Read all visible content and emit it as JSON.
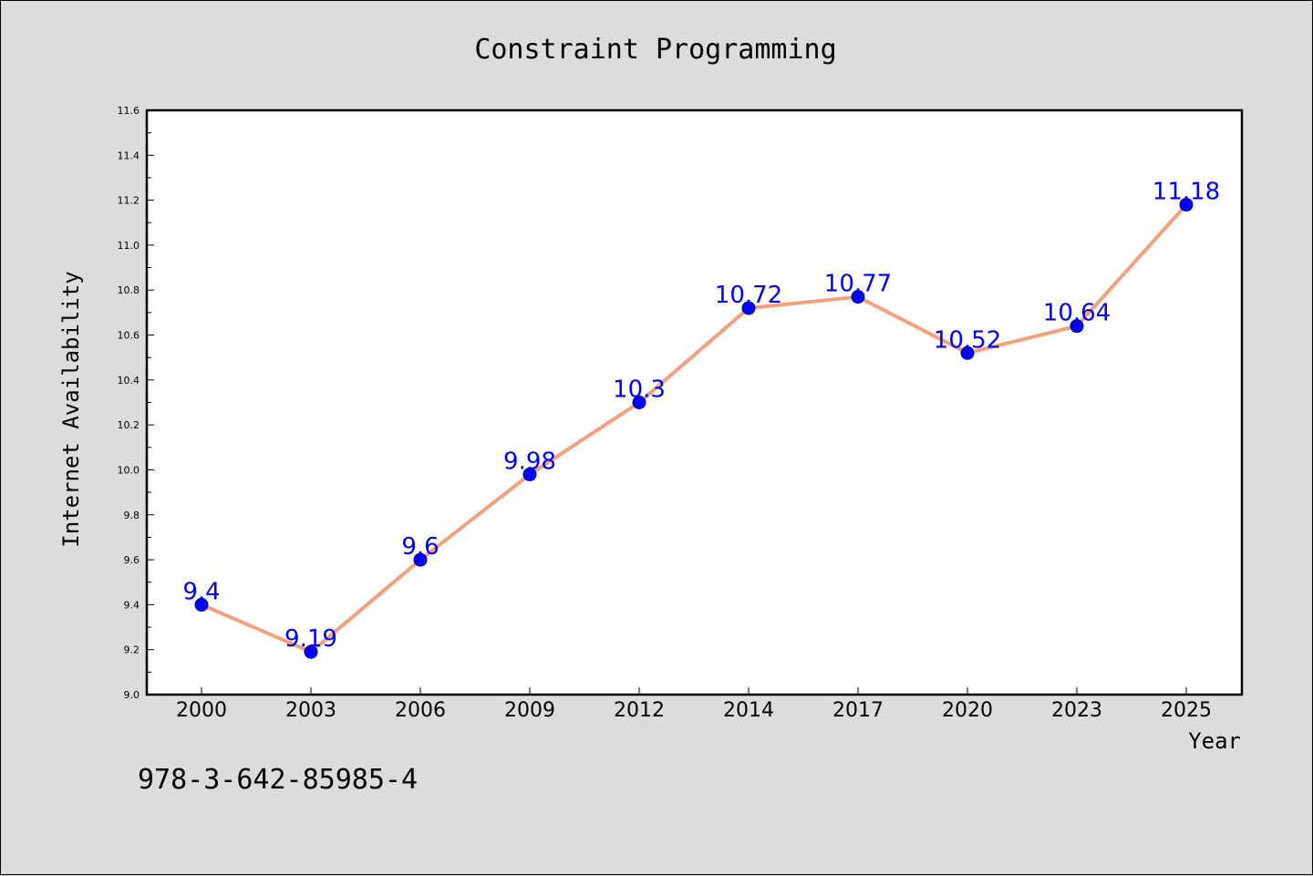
{
  "chart_data": {
    "type": "line",
    "title": "Constraint Programming",
    "xlabel": "Year",
    "ylabel": "Internet Availability",
    "categories": [
      "2000",
      "2003",
      "2006",
      "2009",
      "2012",
      "2014",
      "2017",
      "2020",
      "2023",
      "2025"
    ],
    "values": [
      9.4,
      9.19,
      9.6,
      9.98,
      10.3,
      10.72,
      10.77,
      10.52,
      10.64,
      11.18
    ],
    "data_labels": [
      "9.4",
      "9.19",
      "9.6",
      "9.98",
      "10.3",
      "10.72",
      "10.77",
      "10.52",
      "10.64",
      "11.18"
    ],
    "yticks": [
      "9.0",
      "9.2",
      "9.4",
      "9.6",
      "9.8",
      "10.0",
      "10.2",
      "10.4",
      "10.6",
      "10.8",
      "11.0",
      "11.2",
      "11.4",
      "11.6"
    ],
    "ylim": [
      9.0,
      11.6
    ],
    "grid": false,
    "line_color": "#f4a07c",
    "marker_color": "#0000ff",
    "label_color": "#0000ff"
  },
  "footer": {
    "isbn": "978-3-642-85985-4"
  }
}
